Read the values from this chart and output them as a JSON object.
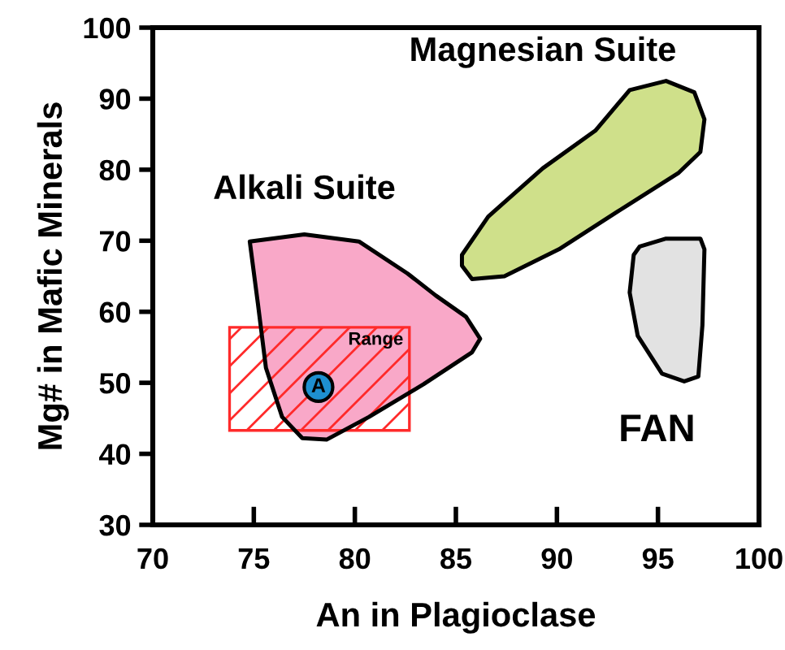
{
  "chart_data": {
    "type": "area",
    "xlabel": "An in Plagioclase",
    "ylabel": "Mg# in Mafic Minerals",
    "xlim": [
      70,
      100
    ],
    "ylim": [
      30,
      100
    ],
    "xticks": [
      70,
      75,
      80,
      85,
      90,
      95,
      100
    ],
    "yticks": [
      30,
      40,
      50,
      60,
      70,
      80,
      90,
      100
    ],
    "grid": false,
    "legend": false,
    "series": [
      {
        "name": "Alkali Suite",
        "color": "#f9a8c8",
        "x": [
          74.8,
          77.5,
          80.2,
          82.6,
          84.0,
          85.5,
          86.2,
          85.8,
          83.4,
          80.7,
          78.6,
          77.4,
          76.4,
          75.6,
          75.2,
          74.8
        ],
        "values": [
          69.9,
          70.9,
          69.9,
          65.4,
          62.3,
          59.3,
          56.2,
          54.3,
          49.8,
          45.2,
          42.0,
          42.2,
          45.2,
          52.1,
          61.2,
          69.9
        ]
      },
      {
        "name": "Magnesian Suite",
        "color": "#cfe08a",
        "x": [
          85.3,
          85.8,
          87.4,
          90.1,
          93.0,
          96.0,
          97.1,
          97.3,
          96.8,
          95.4,
          93.6,
          91.9,
          89.3,
          86.6,
          85.3,
          85.3
        ],
        "values": [
          66.5,
          64.6,
          65.0,
          68.8,
          74.1,
          79.5,
          82.5,
          87.1,
          90.9,
          92.5,
          91.2,
          85.5,
          80.2,
          73.4,
          68.0,
          66.5
        ]
      },
      {
        "name": "FAN",
        "color": "#e2e2e2",
        "x": [
          94.1,
          95.4,
          97.1,
          97.3,
          97.2,
          97.0,
          96.3,
          95.2,
          94.0,
          93.6,
          93.8,
          94.1
        ],
        "values": [
          69.2,
          70.3,
          70.3,
          68.8,
          58.1,
          50.9,
          50.2,
          51.3,
          56.6,
          62.7,
          68.0,
          69.2
        ]
      },
      {
        "name": "Range",
        "color": "#ff2a2a",
        "x": [
          73.8,
          82.7,
          82.7,
          73.8,
          73.8
        ],
        "values": [
          43.3,
          43.3,
          57.8,
          57.8,
          43.3
        ]
      },
      {
        "name": "A",
        "type": "scatter",
        "color": "#1e8fd0",
        "x": [
          78.2
        ],
        "values": [
          49.4
        ]
      }
    ]
  }
}
